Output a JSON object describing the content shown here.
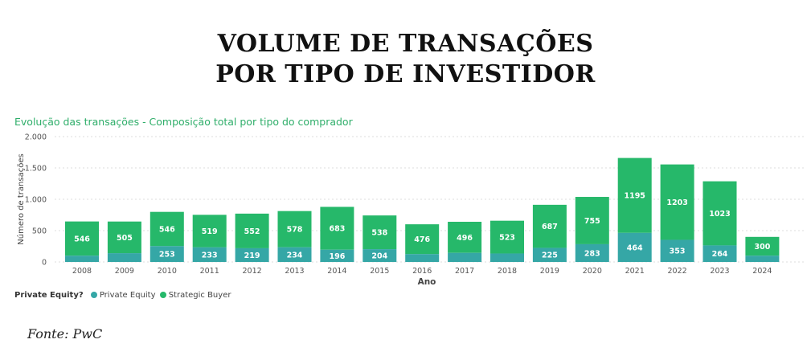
{
  "header": {
    "title_line1": "VOLUME DE TRANSAÇÕES",
    "title_line2": "POR TIPO DE INVESTIDOR"
  },
  "source": "Fonte: PwC",
  "colors": {
    "private_equity": "#35a7a6",
    "strategic_buyer": "#26b86a",
    "subtitle": "#2fae6a",
    "axis_text": "#555555",
    "grid": "#dddddd"
  },
  "chart_data": {
    "type": "bar",
    "stacked": true,
    "title": "Evolução das transações - Composição total por tipo do comprador",
    "xlabel": "Ano",
    "ylabel": "Número de transações",
    "ylim": [
      0,
      2000
    ],
    "yticks": [
      0,
      500,
      1000,
      1500,
      2000
    ],
    "ytick_labels": [
      "0",
      "500",
      "1.000",
      "1.500",
      "2.000"
    ],
    "grid": true,
    "legend": {
      "title": "Private Equity?",
      "entries": [
        "Private Equity",
        "Strategic Buyer"
      ],
      "position": "bottom-left"
    },
    "categories": [
      "2008",
      "2009",
      "2010",
      "2011",
      "2012",
      "2013",
      "2014",
      "2015",
      "2016",
      "2017",
      "2018",
      "2019",
      "2020",
      "2021",
      "2022",
      "2023",
      "2024"
    ],
    "series": [
      {
        "name": "Private Equity",
        "values": [
          100,
          140,
          253,
          233,
          219,
          234,
          196,
          204,
          125,
          145,
          135,
          225,
          283,
          464,
          353,
          264,
          100
        ],
        "labels": [
          "",
          "",
          "253",
          "233",
          "219",
          "234",
          "196",
          "204",
          "",
          "",
          "",
          "225",
          "283",
          "464",
          "353",
          "264",
          ""
        ]
      },
      {
        "name": "Strategic Buyer",
        "values": [
          546,
          505,
          546,
          519,
          552,
          578,
          683,
          538,
          476,
          496,
          523,
          687,
          755,
          1195,
          1203,
          1023,
          300
        ],
        "labels": [
          "546",
          "505",
          "546",
          "519",
          "552",
          "578",
          "683",
          "538",
          "476",
          "496",
          "523",
          "687",
          "755",
          "1195",
          "1203",
          "1023",
          "300"
        ]
      }
    ]
  }
}
